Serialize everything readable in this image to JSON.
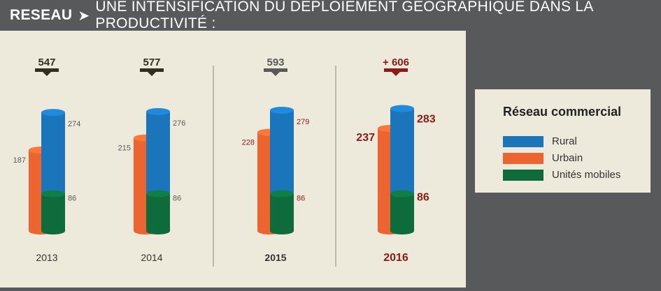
{
  "header": {
    "section": "RESEAU",
    "title": "UNE INTENSIFICATION DU DÉPLOIEMENT GÉOGRAPHIQUE DANS LA PRODUCTIVITÉ :"
  },
  "colors": {
    "rural": "#1b75bb",
    "urbain": "#ec6430",
    "mobiles": "#0d6b3c",
    "highlight": "#8b1a1a",
    "muted": "#58595b",
    "dark": "#2f2f1f"
  },
  "chart_data": {
    "type": "bar",
    "categories": [
      "2013",
      "2014",
      "2015",
      "2016"
    ],
    "totals": [
      547,
      577,
      593,
      606
    ],
    "total_labels": [
      "547",
      "577",
      "593",
      "+ 606"
    ],
    "series": [
      {
        "key": "urbain",
        "name": "Urbain",
        "values": [
          187,
          215,
          228,
          237
        ]
      },
      {
        "key": "rural",
        "name": "Rural",
        "values": [
          274,
          276,
          279,
          283
        ]
      },
      {
        "key": "mobiles",
        "name": "Unités mobiles",
        "values": [
          86,
          86,
          86,
          86
        ]
      }
    ],
    "legend": {
      "title": "Réseau commercial",
      "placement": "right",
      "items": [
        {
          "label": "Rural",
          "color": "#1b75bb"
        },
        {
          "label": "Urbain",
          "color": "#ec6430"
        },
        {
          "label": "Unités mobiles",
          "color": "#0d6b3c"
        }
      ]
    }
  }
}
